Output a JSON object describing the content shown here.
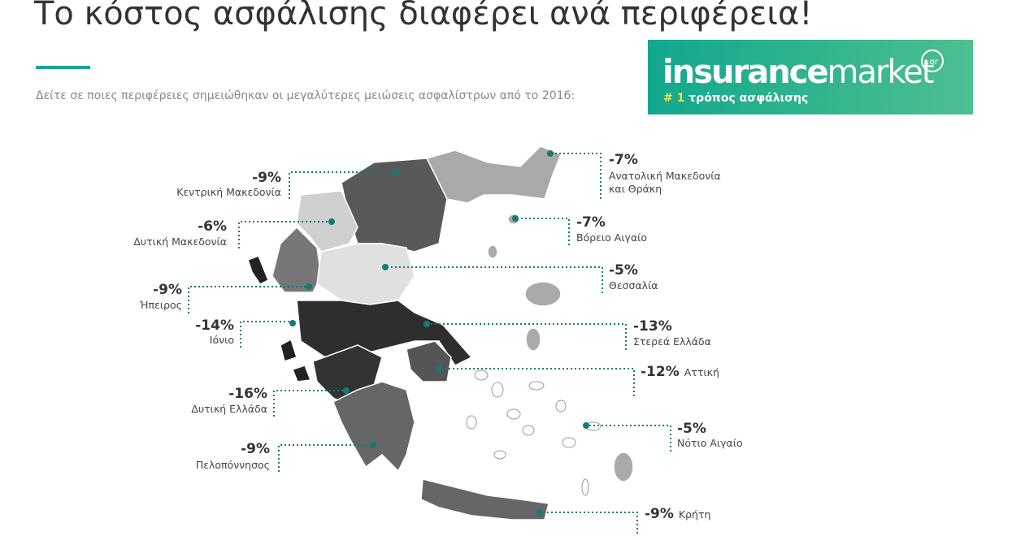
{
  "header": {
    "title": "Το κόστος ασφάλισης διαφέρει ανά περιφέρεια!",
    "subtitle": "Δείτε σε ποιες περιφέρειες σημειώθηκαν οι μεγαλύτερες μειώσεις ασφαλίστρων από το 2016:"
  },
  "logo": {
    "brand_bold": "insurance",
    "brand_light": "market",
    "domain": ".gr",
    "rank": "# 1",
    "tagline": "τρόπος ασφάλισης"
  },
  "regions": [
    {
      "change": "-9%",
      "name": [
        "Κεντρική Μακεδονία"
      ]
    },
    {
      "change": "-6%",
      "name": [
        "Δυτική Μακεδονία"
      ]
    },
    {
      "change": "-9%",
      "name": [
        "Ήπειρος"
      ]
    },
    {
      "change": "-14%",
      "name": [
        "Ιόνιο"
      ]
    },
    {
      "change": "-16%",
      "name": [
        "Δυτική Ελλάδα"
      ]
    },
    {
      "change": "-9%",
      "name": [
        "Πελοπόννησος"
      ]
    },
    {
      "change": "-7%",
      "name": [
        "Ανατολική Μακεδονία",
        "και Θράκη"
      ]
    },
    {
      "change": "-7%",
      "name": [
        "Βόρειο Αιγαίο"
      ]
    },
    {
      "change": "-5%",
      "name": [
        "Θεσσαλία"
      ]
    },
    {
      "change": "-13%",
      "name": [
        "Στερεά Ελλάδα"
      ]
    },
    {
      "change": "-12%",
      "name": [
        "Αττική"
      ]
    },
    {
      "change": "-5%",
      "name": [
        "Νότιο Αιγαίο"
      ]
    },
    {
      "change": "-9%",
      "name": [
        "Κρήτη"
      ]
    }
  ]
}
